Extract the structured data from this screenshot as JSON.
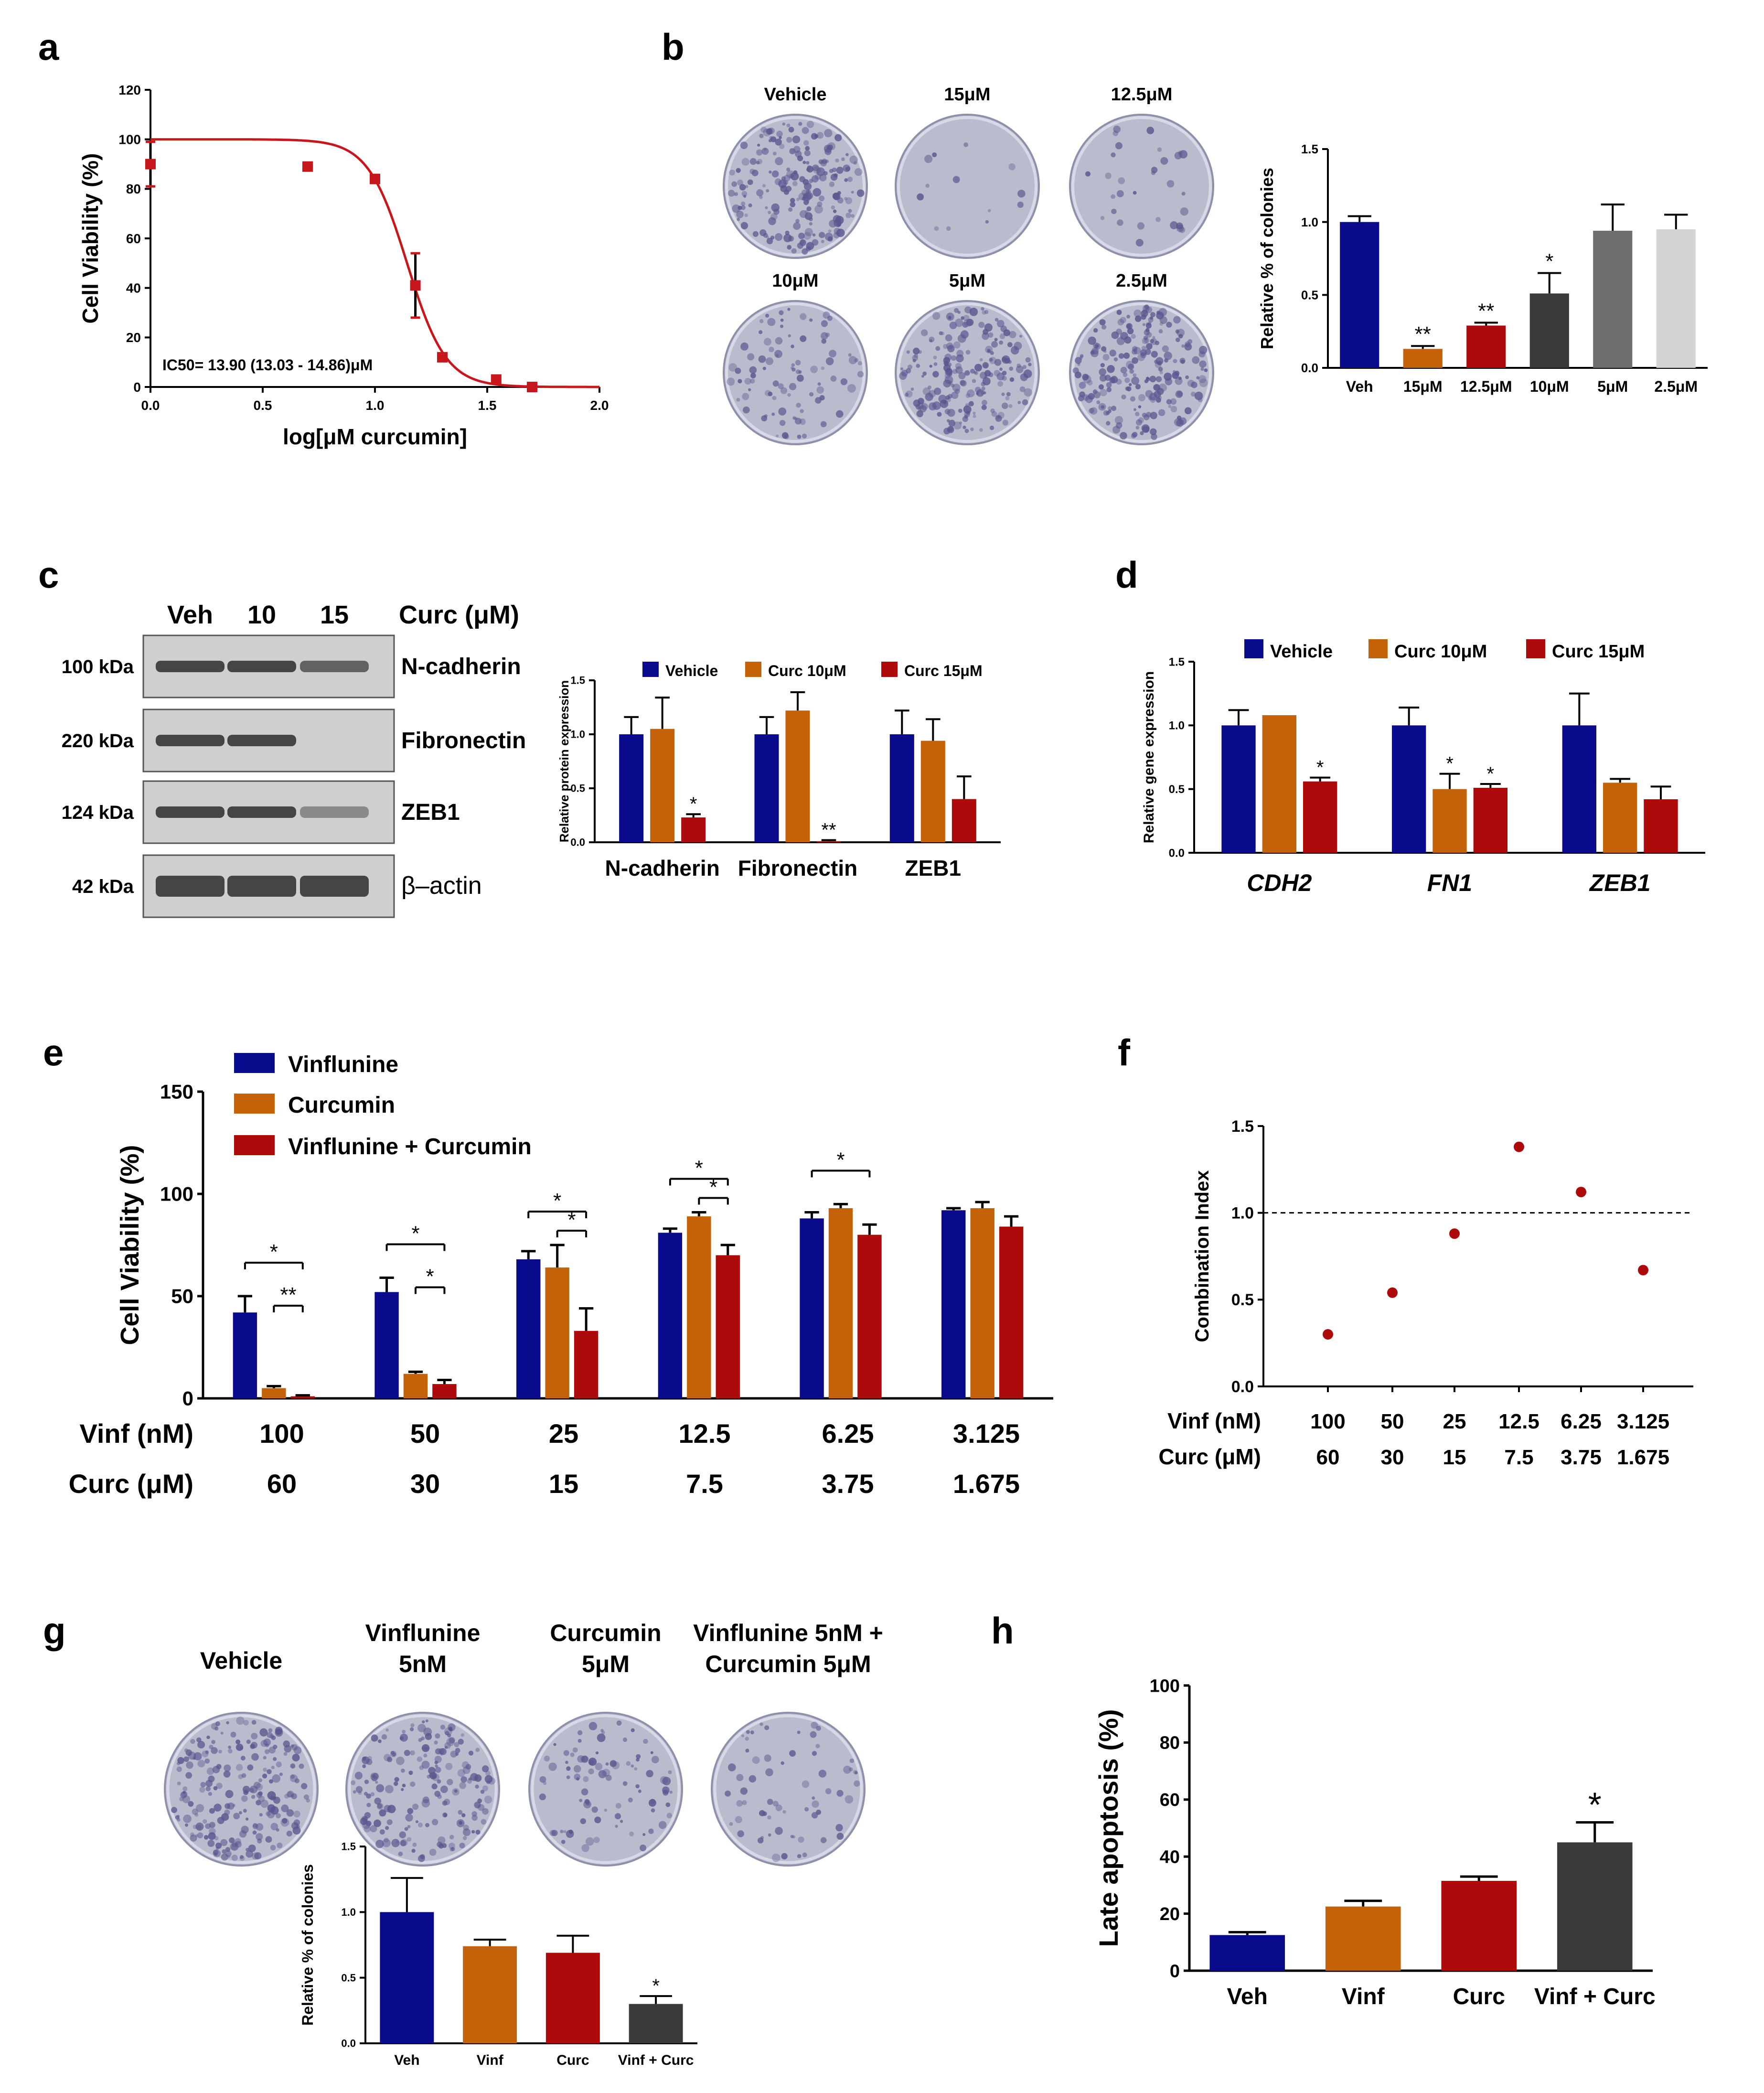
{
  "colors": {
    "blue": "#0a0a8c",
    "orange": "#c4620a",
    "red": "#ad0b0b",
    "darkgray": "#3a3a3a",
    "gray": "#6f6f6f",
    "lightgray": "#d4d4d4",
    "curve": "#c8161d",
    "dish": "#b9bccd",
    "dish_dark": "#5a568e",
    "blot_bg": "#cfcfcf",
    "blot_band": "#2d2d2d"
  },
  "panel_labels": [
    "a",
    "b",
    "c",
    "d",
    "e",
    "f",
    "g",
    "h"
  ],
  "panel_b": {
    "dish_labels": [
      "Vehicle",
      "15μM",
      "12.5μM",
      "10μM",
      "5μM",
      "2.5μM"
    ]
  },
  "panel_c": {
    "lane_labels": [
      "Veh",
      "10",
      "15"
    ],
    "unit": "Curc (μM)",
    "weights": [
      "100 kDa",
      "220 kDa",
      "124 kDa",
      "42 kDa"
    ],
    "proteins": [
      "N-cadherin",
      "Fibronectin",
      "ZEB1",
      "β–actin"
    ]
  },
  "panel_e": {
    "row1_label": "Vinf (nM)",
    "row2_label": "Curc (μM)",
    "row1": [
      "100",
      "50",
      "25",
      "12.5",
      "6.25",
      "3.125"
    ],
    "row2": [
      "60",
      "30",
      "15",
      "7.5",
      "3.75",
      "1.675"
    ]
  },
  "panel_f": {
    "row1_label": "Vinf (nM)",
    "row2_label": "Curc (μM)",
    "row1": [
      "100",
      "50",
      "25",
      "12.5",
      "6.25",
      "3.125"
    ],
    "row2": [
      "60",
      "30",
      "15",
      "7.5",
      "3.75",
      "1.675"
    ]
  },
  "panel_g": {
    "dish_labels": [
      [
        "Vehicle"
      ],
      [
        "Vinflunine",
        "5nM"
      ],
      [
        "Curcumin",
        "5μM"
      ],
      [
        "Vinflunine 5nM +",
        "Curcumin 5μM"
      ]
    ]
  },
  "chart_data": [
    {
      "id": "a",
      "type": "scatter",
      "title": "",
      "xlabel": "log[μM curcumin]",
      "ylabel": "Cell Viability (%)",
      "xlim": [
        0,
        2
      ],
      "ylim": [
        0,
        120
      ],
      "xticks": [
        "0.0",
        "0.5",
        "1.0",
        "1.5",
        "2.0"
      ],
      "yticks": [
        "0",
        "20",
        "40",
        "60",
        "80",
        "100",
        "120"
      ],
      "points": [
        {
          "x": 0.0,
          "y": 90,
          "err": 9
        },
        {
          "x": 0.7,
          "y": 89,
          "err": 0
        },
        {
          "x": 1.0,
          "y": 84,
          "err": 0
        },
        {
          "x": 1.18,
          "y": 41,
          "err": 13
        },
        {
          "x": 1.3,
          "y": 12,
          "err": 0
        },
        {
          "x": 1.54,
          "y": 3,
          "err": 0
        },
        {
          "x": 1.7,
          "y": 0,
          "err": 0
        }
      ],
      "fit": {
        "top": 100,
        "bottom": 0,
        "log_ic50": 1.143,
        "hill": 5
      },
      "annotation": "IC50= 13.90 (13.03 - 14.86)μM"
    },
    {
      "id": "b",
      "type": "bar",
      "ylabel": "Relative % of colonies",
      "ylim": [
        0,
        1.5
      ],
      "yticks": [
        "0.0",
        "0.5",
        "1.0",
        "1.5"
      ],
      "categories": [
        "Veh",
        "15μM",
        "12.5μM",
        "10μM",
        "5μM",
        "2.5μM"
      ],
      "values": [
        1.0,
        0.13,
        0.29,
        0.51,
        0.94,
        0.95
      ],
      "errors": [
        0.04,
        0.02,
        0.02,
        0.14,
        0.18,
        0.1
      ],
      "significance": [
        "",
        "**",
        "**",
        "*",
        "",
        ""
      ],
      "bar_colors": [
        "blue",
        "orange",
        "red",
        "darkgray",
        "gray",
        "lightgray"
      ]
    },
    {
      "id": "c",
      "type": "bar",
      "ylabel": "Relative protein expression",
      "ylim": [
        0,
        1.5
      ],
      "yticks": [
        "0.0",
        "0.5",
        "1.0",
        "1.5"
      ],
      "categories": [
        "N-cadherin",
        "Fibronectin",
        "ZEB1"
      ],
      "series": [
        {
          "name": "Vehicle",
          "color": "blue",
          "values": [
            1.0,
            1.0,
            1.0
          ],
          "errors": [
            0.16,
            0.16,
            0.22
          ],
          "significance": [
            "",
            "",
            ""
          ]
        },
        {
          "name": "Curc 10μM",
          "color": "orange",
          "values": [
            1.05,
            1.22,
            0.94
          ],
          "errors": [
            0.29,
            0.17,
            0.2
          ],
          "significance": [
            "",
            "",
            ""
          ]
        },
        {
          "name": "Curc 15μM",
          "color": "red",
          "values": [
            0.23,
            0.01,
            0.4
          ],
          "errors": [
            0.03,
            0.01,
            0.21
          ],
          "significance": [
            "*",
            "**",
            ""
          ]
        }
      ]
    },
    {
      "id": "d",
      "type": "bar",
      "ylabel": "Relative gene expression",
      "ylim": [
        0,
        1.5
      ],
      "yticks": [
        "0.0",
        "0.5",
        "1.0",
        "1.5"
      ],
      "categories": [
        "CDH2",
        "FN1",
        "ZEB1"
      ],
      "series": [
        {
          "name": "Vehicle",
          "color": "blue",
          "values": [
            1.0,
            1.0,
            1.0
          ],
          "errors": [
            0.12,
            0.14,
            0.25
          ],
          "significance": [
            "",
            "",
            ""
          ]
        },
        {
          "name": "Curc 10μM",
          "color": "orange",
          "values": [
            1.08,
            0.5,
            0.55
          ],
          "errors": [
            0.0,
            0.12,
            0.03
          ],
          "significance": [
            "",
            "*",
            ""
          ]
        },
        {
          "name": "Curc 15μM",
          "color": "red",
          "values": [
            0.56,
            0.51,
            0.42
          ],
          "errors": [
            0.03,
            0.03,
            0.1
          ],
          "significance": [
            "*",
            "*",
            ""
          ]
        }
      ]
    },
    {
      "id": "e",
      "type": "bar",
      "ylabel": "Cell Viability (%)",
      "ylim": [
        0,
        150
      ],
      "yticks": [
        "0",
        "50",
        "100",
        "150"
      ],
      "categories": [
        "100/60",
        "50/30",
        "25/15",
        "12.5/7.5",
        "6.25/3.75",
        "3.125/1.675"
      ],
      "series": [
        {
          "name": "Vinflunine",
          "color": "blue",
          "values": [
            42,
            52,
            68,
            81,
            88,
            92
          ],
          "errors": [
            8,
            7,
            4,
            2,
            3,
            1
          ]
        },
        {
          "name": "Curcumin",
          "color": "orange",
          "values": [
            5,
            12,
            64,
            89,
            93,
            93
          ],
          "errors": [
            1,
            1,
            11,
            2,
            2,
            3
          ]
        },
        {
          "name": "Vinflunine + Curcumin",
          "color": "red",
          "values": [
            1,
            7,
            33,
            70,
            80,
            84
          ],
          "errors": [
            0.5,
            2,
            11,
            5,
            5,
            5
          ]
        }
      ],
      "comparisons": [
        {
          "group": 0,
          "from": 0,
          "to": 2,
          "label": "*",
          "level": 0
        },
        {
          "group": 0,
          "from": 1,
          "to": 2,
          "label": "**",
          "level": 1
        },
        {
          "group": 1,
          "from": 0,
          "to": 2,
          "label": "*",
          "level": 0
        },
        {
          "group": 1,
          "from": 1,
          "to": 2,
          "label": "*",
          "level": 1
        },
        {
          "group": 2,
          "from": 0,
          "to": 2,
          "label": "*",
          "level": 0
        },
        {
          "group": 2,
          "from": 1,
          "to": 2,
          "label": "*",
          "level": 1
        },
        {
          "group": 3,
          "from": 0,
          "to": 2,
          "label": "*",
          "level": 0
        },
        {
          "group": 3,
          "from": 1,
          "to": 2,
          "label": "*",
          "level": 1
        },
        {
          "group": 4,
          "from": 0,
          "to": 2,
          "label": "*",
          "level": 0
        }
      ]
    },
    {
      "id": "f",
      "type": "scatter",
      "ylabel": "Combination Index",
      "ylim": [
        0,
        1.5
      ],
      "yticks": [
        "0.0",
        "0.5",
        "1.0",
        "1.5"
      ],
      "x": [
        "100/60",
        "50/30",
        "25/15",
        "12.5/7.5",
        "6.25/3.75",
        "3.125/1.675"
      ],
      "values": [
        0.3,
        0.54,
        0.88,
        1.38,
        1.12,
        0.67
      ],
      "reference_line": 1.0
    },
    {
      "id": "g",
      "type": "bar",
      "ylabel": "Relative % of colonies",
      "ylim": [
        0,
        1.5
      ],
      "yticks": [
        "0.0",
        "0.5",
        "1.0",
        "1.5"
      ],
      "categories": [
        "Veh",
        "Vinf",
        "Curc",
        "Vinf + Curc"
      ],
      "values": [
        1.0,
        0.74,
        0.69,
        0.3
      ],
      "errors": [
        0.26,
        0.05,
        0.13,
        0.06
      ],
      "significance": [
        "",
        "",
        "",
        "*"
      ],
      "bar_colors": [
        "blue",
        "orange",
        "red",
        "darkgray"
      ]
    },
    {
      "id": "h",
      "type": "bar",
      "ylabel": "Late apoptosis (%)",
      "ylim": [
        0,
        100
      ],
      "yticks": [
        "0",
        "20",
        "40",
        "60",
        "80",
        "100"
      ],
      "categories": [
        "Veh",
        "Vinf",
        "Curc",
        "Vinf + Curc"
      ],
      "values": [
        12.5,
        22.5,
        31.5,
        45
      ],
      "errors": [
        1,
        2,
        1.5,
        7
      ],
      "significance": [
        "",
        "",
        "",
        "*"
      ],
      "bar_colors": [
        "blue",
        "orange",
        "red",
        "darkgray"
      ]
    }
  ]
}
